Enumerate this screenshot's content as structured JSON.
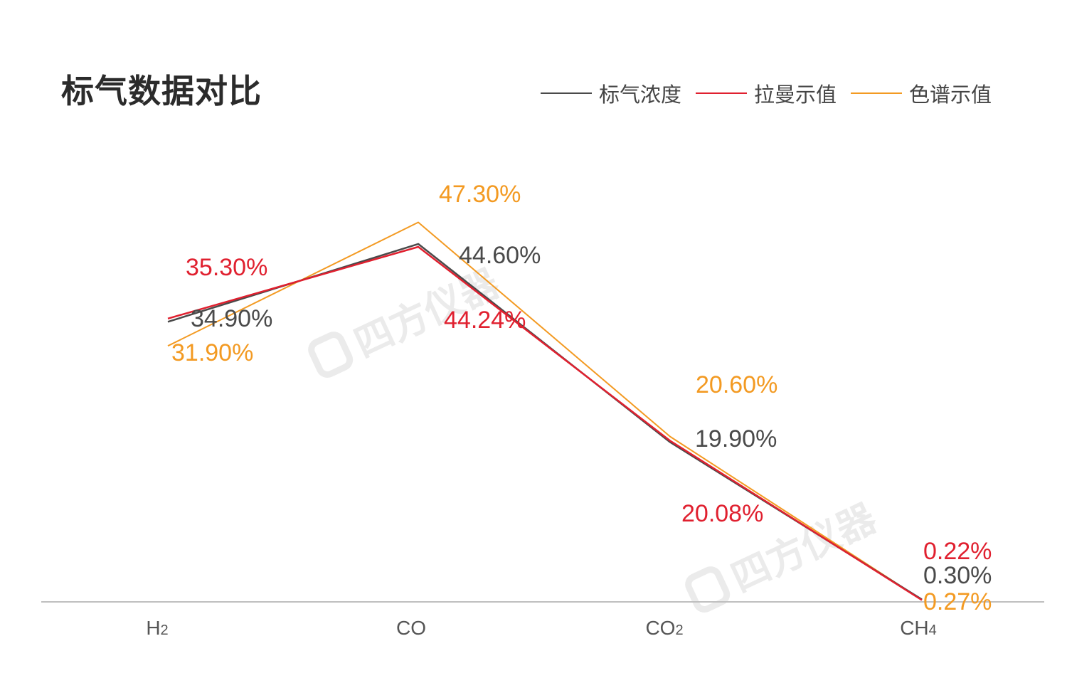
{
  "chart_data": {
    "type": "line",
    "title": "标气数据对比",
    "categories": [
      "H2",
      "CO",
      "CO2",
      "CH4"
    ],
    "category_display": [
      {
        "main": "H",
        "sub": "2"
      },
      {
        "main": "CO",
        "sub": ""
      },
      {
        "main": "CO",
        "sub": "2"
      },
      {
        "main": "CH",
        "sub": "4"
      }
    ],
    "series": [
      {
        "name": "标气浓度",
        "color": "#4a4a4a",
        "values": [
          34.9,
          44.6,
          19.9,
          0.3
        ],
        "labels": [
          "34.90%",
          "44.60%",
          "19.90%",
          "0.30%"
        ]
      },
      {
        "name": "拉曼示值",
        "color": "#e0202f",
        "values": [
          35.3,
          44.24,
          20.08,
          0.22
        ],
        "labels": [
          "35.30%",
          "44.24%",
          "20.08%",
          "0.22%"
        ]
      },
      {
        "name": "色谱示值",
        "color": "#f39a22",
        "values": [
          31.9,
          47.3,
          20.6,
          0.27
        ],
        "labels": [
          "31.90%",
          "47.30%",
          "20.60%",
          "0.27%"
        ]
      }
    ],
    "ylim": [
      0,
      50
    ],
    "xlabel": "",
    "ylabel": "",
    "grid": false,
    "legend_position": "top-right",
    "axis_color": "#bfbfbf"
  },
  "watermark": {
    "text": "四方仪器"
  }
}
